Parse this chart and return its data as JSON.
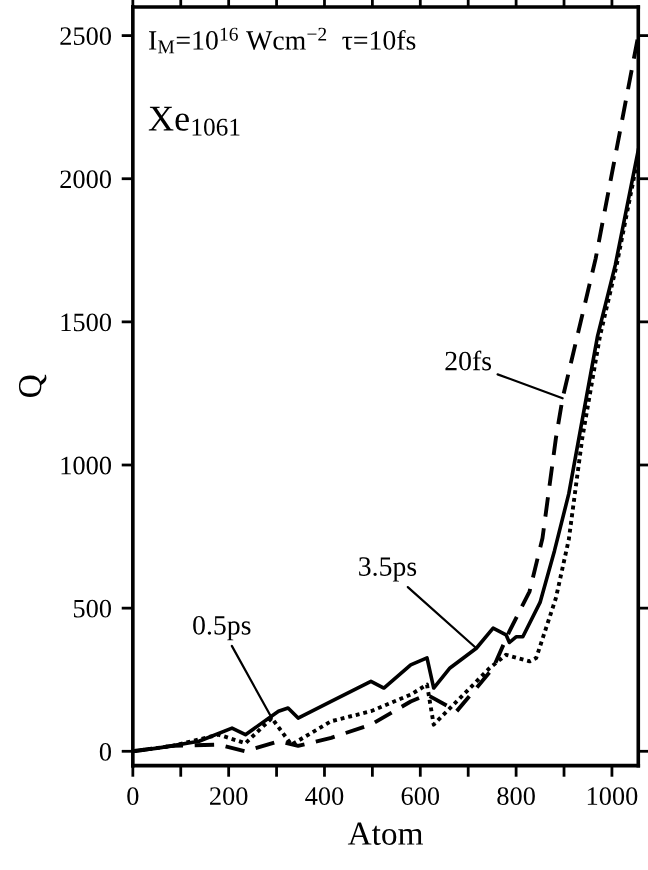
{
  "chart_data": {
    "type": "line",
    "xlabel": "Atom",
    "ylabel": "Q",
    "xlim": [
      0,
      1055
    ],
    "ylim": [
      -50,
      2600
    ],
    "xticks": [
      0,
      {
        "value": 100,
        "label": null
      },
      200,
      {
        "value": 300,
        "label": null
      },
      400,
      {
        "value": 500,
        "label": null
      },
      600,
      {
        "value": 700,
        "label": null
      },
      800,
      {
        "value": 900,
        "label": null
      },
      1000
    ],
    "yticks": [
      0,
      500,
      1000,
      1500,
      2000,
      2500
    ],
    "grid": false,
    "legend": false,
    "marker": "none",
    "annotations": [
      "I$_{M}$=10$^{16}$ Wcm$^{−2}$  τ=10fs",
      "Xe$_{1061}$"
    ],
    "series": [
      {
        "name": "0.5ps",
        "color": "#000000",
        "line_style": "dotted",
        "x": [
          0,
          83,
          179,
          235,
          290,
          331,
          414,
          497,
          580,
          614,
          628,
          690,
          745,
          779,
          828,
          842,
          883,
          910,
          938,
          975,
          1010,
          1055
        ],
        "values": [
          0,
          19,
          58,
          28,
          116,
          23,
          105,
          140,
          198,
          233,
          93,
          198,
          291,
          337,
          314,
          326,
          535,
          740,
          1093,
          1450,
          1700,
          2080
        ]
      },
      {
        "name": "3.5ps",
        "color": "#000000",
        "line_style": "solid",
        "x": [
          0,
          55,
          138,
          207,
          235,
          304,
          324,
          345,
          414,
          497,
          524,
          580,
          614,
          628,
          662,
          717,
          752,
          779,
          786,
          800,
          814,
          850,
          880,
          910,
          931,
          970,
          1007,
          1055
        ],
        "values": [
          0,
          12,
          35,
          81,
          58,
          140,
          151,
          116,
          174,
          244,
          221,
          302,
          326,
          221,
          291,
          360,
          430,
          407,
          380,
          400,
          400,
          520,
          700,
          900,
          1093,
          1450,
          1698,
          2100
        ]
      },
      {
        "name": "20fs",
        "color": "#000000",
        "line_style": "dashed",
        "x": [
          0,
          83,
          179,
          235,
          304,
          345,
          414,
          497,
          580,
          614,
          676,
          717,
          752,
          786,
          828,
          855,
          883,
          897,
          966,
          1055
        ],
        "values": [
          0,
          19,
          23,
          0,
          35,
          19,
          47,
          93,
          174,
          198,
          140,
          221,
          291,
          419,
          558,
          744,
          1093,
          1233,
          1721,
          2500
        ]
      }
    ]
  }
}
